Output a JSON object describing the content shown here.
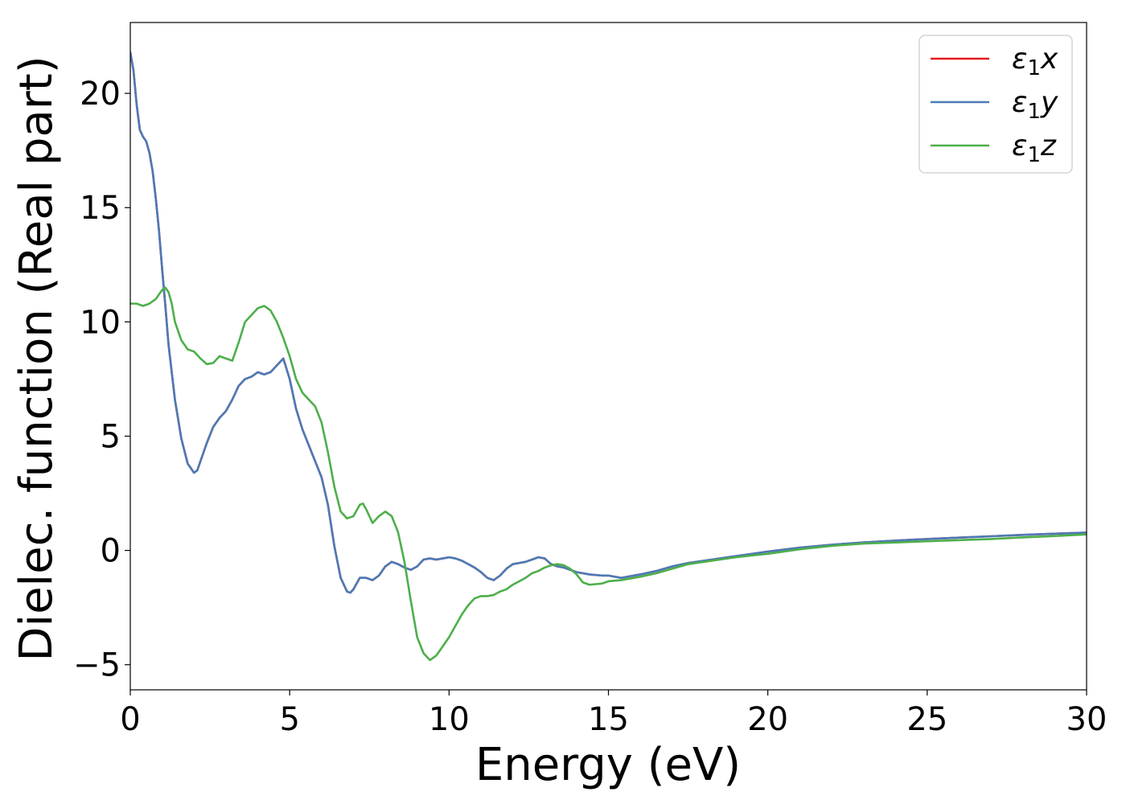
{
  "chart_data": {
    "type": "line",
    "title": "",
    "xlabel": "Energy (eV)",
    "ylabel": "Dielec. function (Real part)",
    "xlim": [
      0,
      30
    ],
    "ylim": [
      -6.1,
      23.1
    ],
    "xticks": [
      0,
      5,
      10,
      15,
      20,
      25,
      30
    ],
    "xtick_labels": [
      "0",
      "5",
      "10",
      "15",
      "20",
      "25",
      "30"
    ],
    "yticks": [
      -5,
      0,
      5,
      10,
      15,
      20
    ],
    "ytick_labels": [
      "−5",
      "0",
      "5",
      "10",
      "15",
      "20"
    ],
    "grid": false,
    "legend_position": "top-right",
    "series": [
      {
        "name": "ε₁x",
        "legend_base": "ε",
        "legend_sub": "1",
        "legend_var": "x",
        "color": "#e41a1c",
        "x": [
          0,
          0.1,
          0.2,
          0.3,
          0.4,
          0.5,
          0.6,
          0.7,
          0.8,
          0.9,
          1.0,
          1.1,
          1.2,
          1.4,
          1.6,
          1.8,
          2.0,
          2.1,
          2.2,
          2.4,
          2.6,
          2.8,
          3.0,
          3.2,
          3.4,
          3.6,
          3.8,
          4.0,
          4.2,
          4.4,
          4.6,
          4.8,
          5.0,
          5.2,
          5.4,
          5.6,
          5.8,
          6.0,
          6.2,
          6.4,
          6.6,
          6.8,
          6.9,
          7.0,
          7.2,
          7.4,
          7.6,
          7.8,
          8.0,
          8.2,
          8.4,
          8.6,
          8.8,
          9.0,
          9.2,
          9.4,
          9.6,
          9.8,
          10.0,
          10.2,
          10.4,
          10.6,
          10.8,
          11.0,
          11.2,
          11.4,
          11.6,
          11.8,
          12.0,
          12.2,
          12.4,
          12.6,
          12.8,
          13.0,
          13.2,
          13.4,
          13.6,
          13.8,
          14.0,
          14.4,
          14.8,
          15.0,
          15.4,
          16.0,
          16.5,
          17.0,
          17.5,
          18.0,
          18.5,
          19.0,
          19.5,
          20.0,
          21.0,
          22.0,
          23.0,
          24.0,
          25.0,
          26.0,
          27.0,
          28.0,
          29.0,
          30.0
        ],
        "y": [
          21.8,
          21.0,
          19.5,
          18.4,
          18.1,
          17.9,
          17.4,
          16.6,
          15.4,
          14.0,
          12.3,
          10.7,
          9.0,
          6.6,
          4.9,
          3.8,
          3.4,
          3.5,
          3.9,
          4.7,
          5.4,
          5.8,
          6.1,
          6.6,
          7.2,
          7.5,
          7.6,
          7.8,
          7.7,
          7.8,
          8.1,
          8.4,
          7.5,
          6.2,
          5.3,
          4.6,
          3.9,
          3.2,
          2.0,
          0.2,
          -1.2,
          -1.8,
          -1.85,
          -1.7,
          -1.2,
          -1.2,
          -1.3,
          -1.1,
          -0.7,
          -0.5,
          -0.6,
          -0.75,
          -0.85,
          -0.7,
          -0.4,
          -0.35,
          -0.4,
          -0.35,
          -0.3,
          -0.35,
          -0.45,
          -0.6,
          -0.75,
          -0.95,
          -1.2,
          -1.3,
          -1.1,
          -0.8,
          -0.6,
          -0.55,
          -0.5,
          -0.4,
          -0.3,
          -0.35,
          -0.6,
          -0.7,
          -0.75,
          -0.85,
          -0.95,
          -1.05,
          -1.1,
          -1.1,
          -1.2,
          -1.05,
          -0.9,
          -0.7,
          -0.55,
          -0.45,
          -0.35,
          -0.25,
          -0.15,
          -0.05,
          0.12,
          0.25,
          0.35,
          0.43,
          0.5,
          0.56,
          0.62,
          0.68,
          0.73,
          0.78
        ]
      },
      {
        "name": "ε₁y",
        "legend_base": "ε",
        "legend_sub": "1",
        "legend_var": "y",
        "color": "#4a7bb7",
        "x": [
          0,
          0.1,
          0.2,
          0.3,
          0.4,
          0.5,
          0.6,
          0.7,
          0.8,
          0.9,
          1.0,
          1.1,
          1.2,
          1.4,
          1.6,
          1.8,
          2.0,
          2.1,
          2.2,
          2.4,
          2.6,
          2.8,
          3.0,
          3.2,
          3.4,
          3.6,
          3.8,
          4.0,
          4.2,
          4.4,
          4.6,
          4.8,
          5.0,
          5.2,
          5.4,
          5.6,
          5.8,
          6.0,
          6.2,
          6.4,
          6.6,
          6.8,
          6.9,
          7.0,
          7.2,
          7.4,
          7.6,
          7.8,
          8.0,
          8.2,
          8.4,
          8.6,
          8.8,
          9.0,
          9.2,
          9.4,
          9.6,
          9.8,
          10.0,
          10.2,
          10.4,
          10.6,
          10.8,
          11.0,
          11.2,
          11.4,
          11.6,
          11.8,
          12.0,
          12.2,
          12.4,
          12.6,
          12.8,
          13.0,
          13.2,
          13.4,
          13.6,
          13.8,
          14.0,
          14.4,
          14.8,
          15.0,
          15.4,
          16.0,
          16.5,
          17.0,
          17.5,
          18.0,
          18.5,
          19.0,
          19.5,
          20.0,
          21.0,
          22.0,
          23.0,
          24.0,
          25.0,
          26.0,
          27.0,
          28.0,
          29.0,
          30.0
        ],
        "y": [
          21.8,
          21.0,
          19.5,
          18.4,
          18.1,
          17.9,
          17.4,
          16.6,
          15.4,
          14.0,
          12.3,
          10.7,
          9.0,
          6.6,
          4.9,
          3.8,
          3.4,
          3.5,
          3.9,
          4.7,
          5.4,
          5.8,
          6.1,
          6.6,
          7.2,
          7.5,
          7.6,
          7.8,
          7.7,
          7.8,
          8.1,
          8.4,
          7.5,
          6.2,
          5.3,
          4.6,
          3.9,
          3.2,
          2.0,
          0.2,
          -1.2,
          -1.8,
          -1.85,
          -1.7,
          -1.2,
          -1.2,
          -1.3,
          -1.1,
          -0.7,
          -0.5,
          -0.6,
          -0.75,
          -0.85,
          -0.7,
          -0.4,
          -0.35,
          -0.4,
          -0.35,
          -0.3,
          -0.35,
          -0.45,
          -0.6,
          -0.75,
          -0.95,
          -1.2,
          -1.3,
          -1.1,
          -0.8,
          -0.6,
          -0.55,
          -0.5,
          -0.4,
          -0.3,
          -0.35,
          -0.6,
          -0.7,
          -0.75,
          -0.85,
          -0.95,
          -1.05,
          -1.1,
          -1.1,
          -1.2,
          -1.05,
          -0.9,
          -0.7,
          -0.55,
          -0.45,
          -0.35,
          -0.25,
          -0.15,
          -0.05,
          0.12,
          0.25,
          0.35,
          0.43,
          0.5,
          0.56,
          0.62,
          0.68,
          0.73,
          0.78
        ]
      },
      {
        "name": "ε₁z",
        "legend_base": "ε",
        "legend_sub": "1",
        "legend_var": "z",
        "color": "#4daf4a",
        "x": [
          0,
          0.2,
          0.4,
          0.6,
          0.8,
          1.0,
          1.1,
          1.2,
          1.3,
          1.4,
          1.6,
          1.8,
          2.0,
          2.2,
          2.4,
          2.6,
          2.8,
          3.0,
          3.2,
          3.4,
          3.6,
          3.8,
          4.0,
          4.2,
          4.4,
          4.6,
          4.8,
          5.0,
          5.2,
          5.4,
          5.6,
          5.8,
          6.0,
          6.2,
          6.4,
          6.6,
          6.8,
          7.0,
          7.2,
          7.3,
          7.4,
          7.6,
          7.8,
          8.0,
          8.2,
          8.4,
          8.6,
          8.8,
          9.0,
          9.2,
          9.4,
          9.6,
          9.8,
          10.0,
          10.2,
          10.4,
          10.6,
          10.8,
          11.0,
          11.2,
          11.4,
          11.6,
          11.8,
          12.0,
          12.2,
          12.4,
          12.6,
          12.8,
          13.0,
          13.2,
          13.4,
          13.6,
          13.8,
          14.0,
          14.2,
          14.4,
          14.8,
          15.0,
          15.4,
          16.0,
          16.5,
          17.0,
          17.5,
          18.0,
          18.5,
          19.0,
          19.5,
          20.0,
          21.0,
          22.0,
          23.0,
          24.0,
          25.0,
          26.0,
          27.0,
          28.0,
          29.0,
          30.0
        ],
        "y": [
          10.8,
          10.8,
          10.7,
          10.8,
          11.0,
          11.4,
          11.5,
          11.3,
          10.8,
          10.0,
          9.2,
          8.8,
          8.7,
          8.4,
          8.15,
          8.2,
          8.5,
          8.4,
          8.3,
          9.1,
          10.0,
          10.3,
          10.6,
          10.7,
          10.5,
          10.0,
          9.3,
          8.5,
          7.5,
          6.9,
          6.6,
          6.3,
          5.6,
          4.3,
          2.8,
          1.7,
          1.4,
          1.5,
          2.0,
          2.05,
          1.8,
          1.2,
          1.5,
          1.7,
          1.5,
          0.8,
          -0.5,
          -2.2,
          -3.8,
          -4.5,
          -4.8,
          -4.6,
          -4.2,
          -3.8,
          -3.3,
          -2.8,
          -2.4,
          -2.1,
          -2.0,
          -2.0,
          -1.95,
          -1.8,
          -1.7,
          -1.5,
          -1.35,
          -1.2,
          -1.0,
          -0.9,
          -0.75,
          -0.65,
          -0.6,
          -0.65,
          -0.8,
          -1.05,
          -1.4,
          -1.5,
          -1.45,
          -1.35,
          -1.3,
          -1.15,
          -1.0,
          -0.8,
          -0.6,
          -0.5,
          -0.4,
          -0.3,
          -0.22,
          -0.15,
          0.05,
          0.2,
          0.3,
          0.35,
          0.4,
          0.45,
          0.5,
          0.57,
          0.63,
          0.7
        ]
      }
    ]
  }
}
